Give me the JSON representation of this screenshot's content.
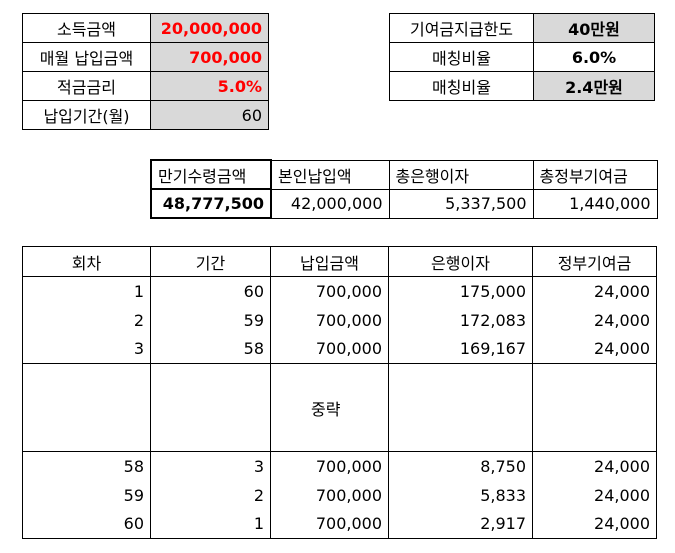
{
  "income_table": {
    "rows": [
      {
        "label": "소득금액",
        "value": "20,000,000"
      },
      {
        "label": "매월 납입금액",
        "value": "700,000"
      },
      {
        "label": "적금금리",
        "value": "5.0%"
      },
      {
        "label": "납입기간(월)",
        "value": "60"
      }
    ]
  },
  "limit_table": {
    "rows": [
      {
        "label": "기여금지급한도",
        "value": "40만원"
      },
      {
        "label": "매칭비율",
        "value": "6.0%"
      },
      {
        "label": "매칭비율",
        "value": "2.4만원"
      }
    ]
  },
  "summary_table": {
    "headers": [
      "만기수령금액",
      "본인납입액",
      "총은행이자",
      "총정부기여금"
    ],
    "values": [
      "48,777,500",
      "42,000,000",
      "5,337,500",
      "1,440,000"
    ]
  },
  "schedule_table": {
    "headers": [
      "회차",
      "기간",
      "납입금액",
      "은행이자",
      "정부기여금"
    ],
    "rows_top": [
      [
        "1",
        "60",
        "700,000",
        "175,000",
        "24,000"
      ],
      [
        "2",
        "59",
        "700,000",
        "172,083",
        "24,000"
      ],
      [
        "3",
        "58",
        "700,000",
        "169,167",
        "24,000"
      ]
    ],
    "omitted_label": "중략",
    "rows_bottom": [
      [
        "58",
        "3",
        "700,000",
        "8,750",
        "24,000"
      ],
      [
        "59",
        "2",
        "700,000",
        "5,833",
        "24,000"
      ],
      [
        "60",
        "1",
        "700,000",
        "2,917",
        "24,000"
      ]
    ]
  }
}
